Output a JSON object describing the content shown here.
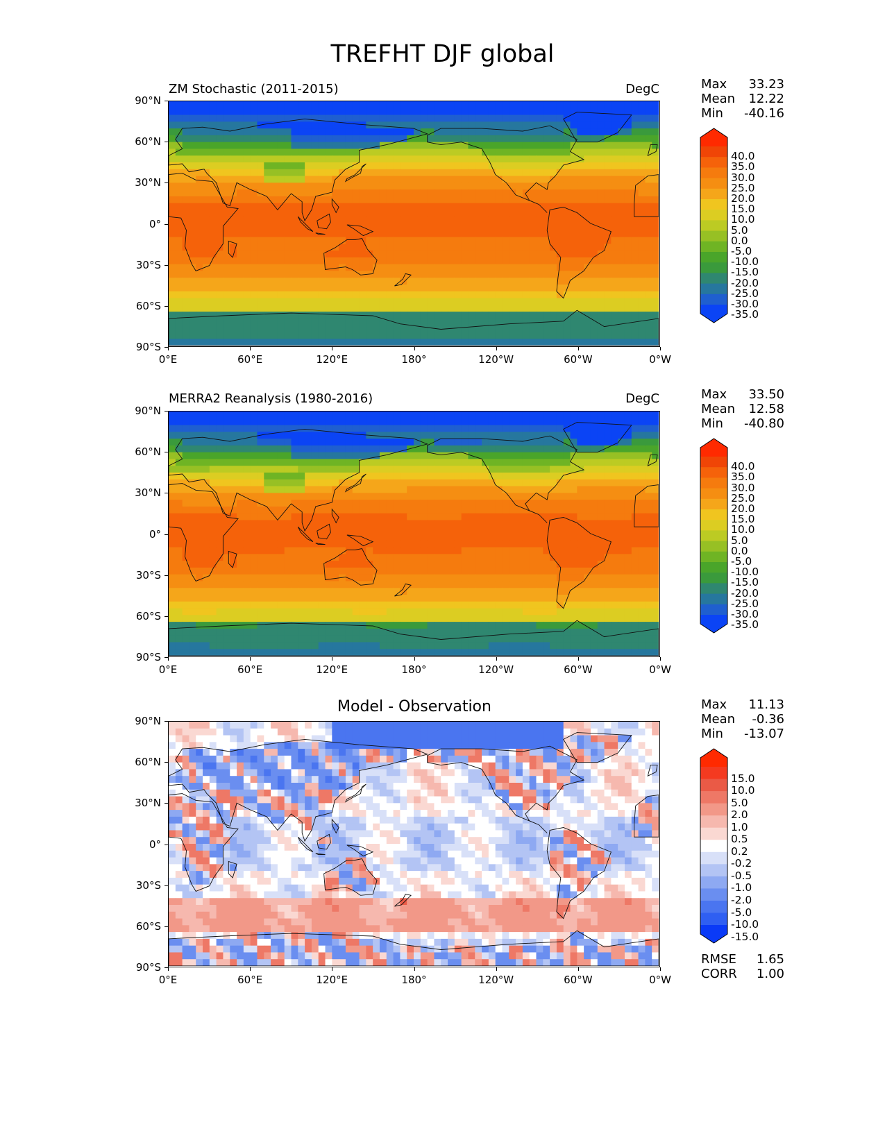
{
  "title": "TREFHT DJF global",
  "panels": [
    {
      "id": "model",
      "title_left": "ZM Stochastic (2011-2015)",
      "units": "DegC",
      "stats": [
        {
          "name": "Max",
          "value": "33.23"
        },
        {
          "name": "Mean",
          "value": "12.22"
        },
        {
          "name": "Min",
          "value": "-40.16"
        }
      ],
      "colorbar_labels": [
        "40.0",
        "35.0",
        "30.0",
        "25.0",
        "20.0",
        "15.0",
        "10.0",
        "5.0",
        "0.0",
        "-5.0",
        "-10.0",
        "-15.0",
        "-20.0",
        "-25.0",
        "-30.0",
        "-35.0"
      ]
    },
    {
      "id": "obs",
      "title_left": "MERRA2 Reanalysis (1980-2016)",
      "units": "DegC",
      "stats": [
        {
          "name": "Max",
          "value": "33.50"
        },
        {
          "name": "Mean",
          "value": "12.58"
        },
        {
          "name": "Min",
          "value": "-40.80"
        }
      ],
      "colorbar_labels": [
        "40.0",
        "35.0",
        "30.0",
        "25.0",
        "20.0",
        "15.0",
        "10.0",
        "5.0",
        "0.0",
        "-5.0",
        "-10.0",
        "-15.0",
        "-20.0",
        "-25.0",
        "-30.0",
        "-35.0"
      ]
    },
    {
      "id": "diff",
      "title_center": "Model - Observation",
      "stats": [
        {
          "name": "Max",
          "value": "11.13"
        },
        {
          "name": "Mean",
          "value": "-0.36"
        },
        {
          "name": "Min",
          "value": "-13.07"
        }
      ],
      "colorbar_labels": [
        "15.0",
        "10.0",
        "5.0",
        "2.0",
        "1.0",
        "0.5",
        "0.2",
        "-0.2",
        "-0.5",
        "-1.0",
        "-2.0",
        "-5.0",
        "-10.0",
        "-15.0"
      ],
      "extra_stats": [
        {
          "name": "RMSE",
          "value": "1.65"
        },
        {
          "name": "CORR",
          "value": "1.00"
        }
      ]
    }
  ],
  "lat_labels": [
    "90°N",
    "60°N",
    "30°N",
    "0°",
    "30°S",
    "60°S",
    "90°S"
  ],
  "lon_labels": [
    "0°E",
    "60°E",
    "120°E",
    "180°",
    "120°W",
    "60°W",
    "0°W"
  ],
  "abs_colors": [
    "#0b44f5",
    "#1f5fcf",
    "#26779e",
    "#2f8770",
    "#3a9a3c",
    "#4aa52a",
    "#6fb424",
    "#97c024",
    "#bccb23",
    "#dccd22",
    "#f0c51f",
    "#f5a61a",
    "#f58e12",
    "#f57b0e",
    "#f5620a",
    "#f04506",
    "#ff2a00"
  ],
  "diff_colors": [
    "#0a3af7",
    "#2f5ff2",
    "#4a75f0",
    "#6a8ef0",
    "#8ea9f2",
    "#b3c4f4",
    "#d8e0f8",
    "#ffffff",
    "#fad8d2",
    "#f6b8ae",
    "#f29888",
    "#ee7866",
    "#ea5a46",
    "#f43a20",
    "#ff2a00"
  ]
}
